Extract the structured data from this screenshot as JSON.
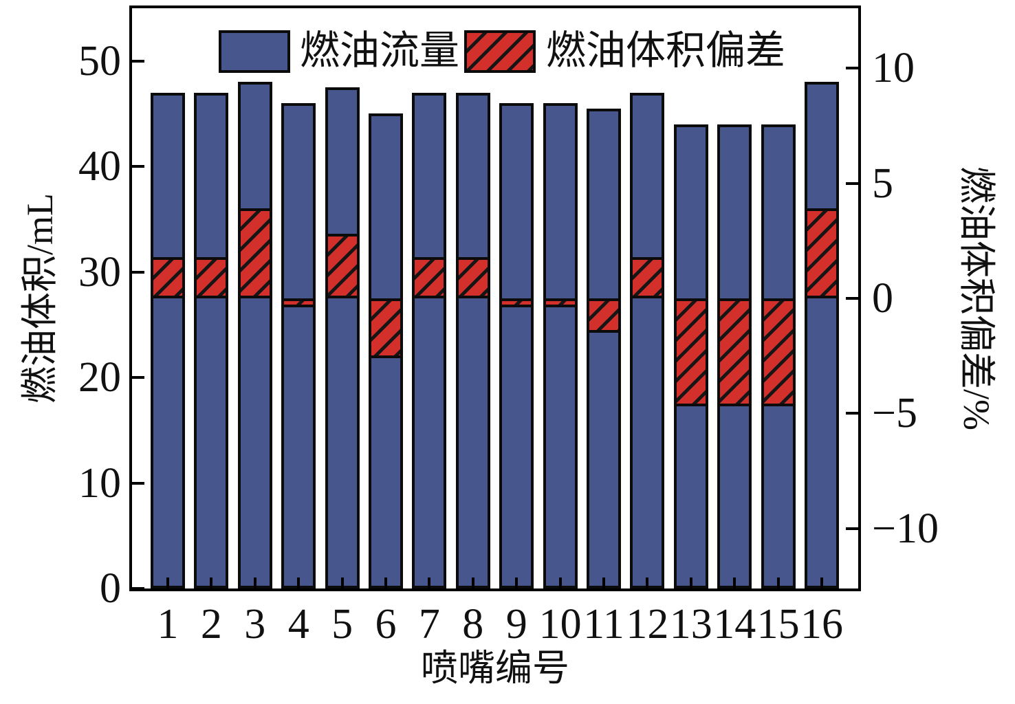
{
  "figure": {
    "background_color": "#ffffff",
    "frame_color": "#000000"
  },
  "chart_data": {
    "type": "bar",
    "title": "",
    "xlabel": "喷嘴编号",
    "ylabel_left": "燃油体积/mL",
    "ylabel_right": "燃油体积偏差/%",
    "categories": [
      "1",
      "2",
      "3",
      "4",
      "5",
      "6",
      "7",
      "8",
      "9",
      "10",
      "11",
      "12",
      "13",
      "14",
      "15",
      "16"
    ],
    "series": [
      {
        "name": "燃油流量",
        "axis": "left",
        "style": "solid",
        "color": "#47568C",
        "values": [
          47,
          47,
          48,
          46,
          47.5,
          45,
          47,
          47,
          46,
          46,
          45.5,
          47,
          44,
          44,
          44,
          48
        ]
      },
      {
        "name": "燃油体积偏差",
        "axis": "right",
        "style": "hatched-diagonal",
        "color": "#D3302B",
        "hatch_color": "#161616",
        "values": [
          1.8,
          1.8,
          3.9,
          -0.4,
          2.8,
          -2.6,
          1.8,
          1.8,
          -0.4,
          -0.4,
          -1.5,
          1.8,
          -4.7,
          -4.7,
          -4.7,
          3.9
        ]
      }
    ],
    "axes": {
      "left": {
        "min": 0,
        "max": 55,
        "ticks": [
          0,
          10,
          20,
          30,
          40,
          50
        ]
      },
      "right": {
        "min": -12.6,
        "max": 12.6,
        "ticks": [
          -10,
          -5,
          0,
          5,
          10
        ]
      }
    },
    "grid": false,
    "legend_position": "top-inside"
  }
}
